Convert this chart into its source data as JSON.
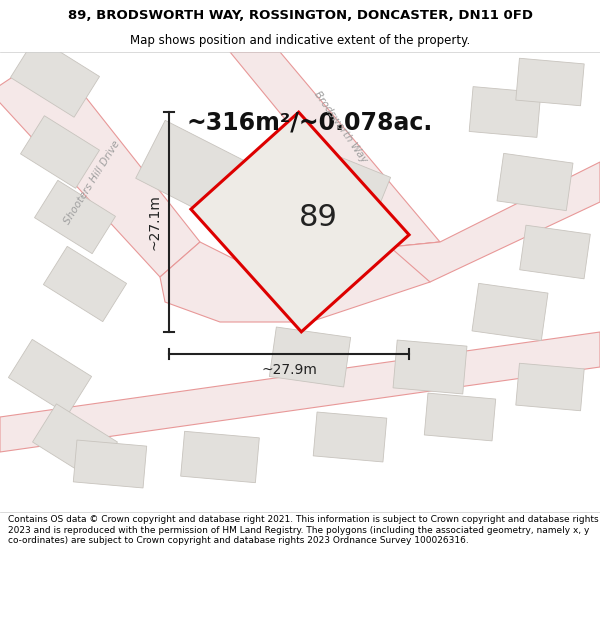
{
  "title_line1": "89, BRODSWORTH WAY, ROSSINGTON, DONCASTER, DN11 0FD",
  "title_line2": "Map shows position and indicative extent of the property.",
  "area_text": "~316m²/~0.078ac.",
  "width_label": "~27.9m",
  "height_label": "~27.1m",
  "plot_number": "89",
  "footer_text": "Contains OS data © Crown copyright and database right 2021. This information is subject to Crown copyright and database rights 2023 and is reproduced with the permission of HM Land Registry. The polygons (including the associated geometry, namely x, y co-ordinates) are subject to Crown copyright and database rights 2023 Ordnance Survey 100026316.",
  "bg_color": "#f7f5f2",
  "map_bg": "#f7f5f2",
  "plot_fill": "#ededea",
  "road_color": "#f0a0a0",
  "road_line_color": "#e89898",
  "plot_outline_color": "#dd0000",
  "building_fill": "#e2e0dc",
  "building_edge": "#c8c4be",
  "footer_bg": "#ffffff",
  "title_bg": "#ffffff",
  "dim_line_color": "#222222",
  "road_label_color": "#a0a0a0",
  "title_fontsize": 9.5,
  "subtitle_fontsize": 8.5,
  "area_fontsize": 17,
  "plot_num_fontsize": 22,
  "dim_fontsize": 10,
  "footer_fontsize": 6.5
}
